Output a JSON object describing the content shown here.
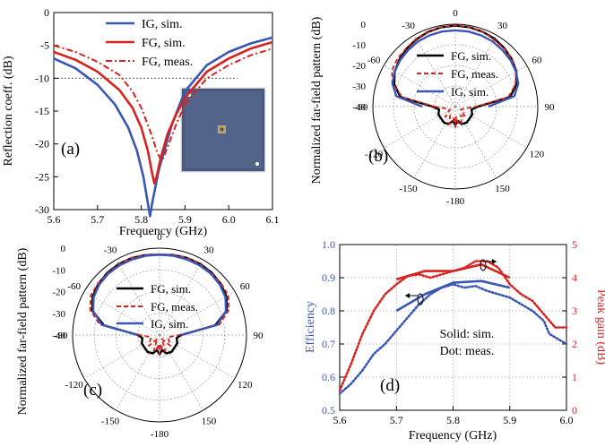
{
  "colors": {
    "ig": "#3a57b5",
    "fg": "#d7231f",
    "black": "#000000",
    "gain_axis": "#d7231f",
    "eff_axis": "#3a57b5",
    "grid": "#9a9a9a",
    "photo": "#4a5a7c"
  },
  "chart_data": [
    {
      "id": "a",
      "type": "line",
      "panel_label": "(a)",
      "xlabel": "Frequency (GHz)",
      "ylabel": "Reflection coeff. (dB)",
      "xlim": [
        5.6,
        6.1
      ],
      "ylim": [
        -30,
        0
      ],
      "xticks": [
        5.6,
        5.7,
        5.8,
        5.9,
        6.0,
        6.1
      ],
      "xtick_labels": [
        "5.6",
        "5.7",
        "5.8",
        "5.9",
        "6.0",
        "6.1"
      ],
      "yticks": [
        0,
        -5,
        -10,
        -15,
        -20,
        -25,
        -30
      ],
      "ytick_labels": [
        "0",
        "-5",
        "-10",
        "-15",
        "-20",
        "-25",
        "-30"
      ],
      "reference_line": -10,
      "legend": [
        "IG, sim.",
        "FG, sim.",
        "FG, meas."
      ],
      "series": [
        {
          "name": "IG, sim.",
          "style": "solid",
          "color": "ig",
          "x": [
            5.6,
            5.65,
            5.7,
            5.74,
            5.77,
            5.79,
            5.805,
            5.815,
            5.82,
            5.825,
            5.84,
            5.87,
            5.9,
            5.95,
            6.0,
            6.05,
            6.1
          ],
          "y": [
            -7,
            -8.5,
            -11,
            -14,
            -17.5,
            -21,
            -25,
            -29,
            -31,
            -29,
            -24,
            -17,
            -12,
            -8,
            -6,
            -4.7,
            -3.8
          ]
        },
        {
          "name": "FG, sim.",
          "style": "solid",
          "color": "fg",
          "x": [
            5.6,
            5.65,
            5.7,
            5.75,
            5.78,
            5.8,
            5.815,
            5.825,
            5.83,
            5.835,
            5.845,
            5.86,
            5.88,
            5.9,
            5.95,
            6.0,
            6.05,
            6.1
          ],
          "y": [
            -6,
            -7.2,
            -9,
            -11.8,
            -14.5,
            -17.5,
            -21,
            -24.5,
            -26,
            -25,
            -22,
            -18.5,
            -15.5,
            -13,
            -9,
            -7,
            -5.5,
            -4.5
          ]
        },
        {
          "name": "FG, meas.",
          "style": "dashdot",
          "color": "fg",
          "x": [
            5.6,
            5.65,
            5.7,
            5.75,
            5.78,
            5.8,
            5.82,
            5.835,
            5.845,
            5.85,
            5.86,
            5.88,
            5.9,
            5.95,
            6.0,
            6.05,
            6.1
          ],
          "y": [
            -5,
            -6,
            -7.5,
            -9.5,
            -12,
            -14.5,
            -18,
            -21,
            -22.5,
            -22.2,
            -20.5,
            -17,
            -14,
            -10,
            -8,
            -6.5,
            -5.5
          ]
        }
      ],
      "inset": "photo of fabricated antenna"
    },
    {
      "id": "b",
      "type": "polar",
      "panel_label": "(b)",
      "ylabel": "Normalized far-field pattern (dB)",
      "radial_range": [
        -40,
        0
      ],
      "radial_ticks": [
        0,
        -10,
        -20,
        -30,
        -40
      ],
      "radial_tick_labels": [
        "0",
        "-10",
        "-20",
        "-30",
        "-40"
      ],
      "angle_labels": [
        "0",
        "30",
        "60",
        "90",
        "120",
        "150",
        "-180",
        "-150",
        "-120",
        "-90",
        "-60",
        "-30"
      ],
      "legend": [
        "FG, sim.",
        "FG, meas.",
        "IG, sim."
      ],
      "series": [
        {
          "name": "FG, sim.",
          "style": "solid",
          "color": "black",
          "theta": [
            -90,
            -80,
            -70,
            -60,
            -50,
            -40,
            -30,
            -20,
            -10,
            0,
            10,
            20,
            30,
            40,
            50,
            60,
            70,
            80,
            90,
            100,
            115,
            130,
            145,
            160,
            170,
            180,
            -170,
            -160,
            -145,
            -130,
            -115,
            -100
          ],
          "r": [
            -29,
            -13,
            -8.5,
            -6,
            -4.5,
            -3.3,
            -2.3,
            -1.4,
            -0.9,
            -0.7,
            -0.9,
            -1.3,
            -2,
            -3,
            -4.2,
            -5.8,
            -8.5,
            -13,
            -29,
            -32,
            -31,
            -31,
            -30.5,
            -31,
            -33,
            -31,
            -33,
            -31,
            -30.5,
            -31,
            -31,
            -32
          ]
        },
        {
          "name": "FG, meas.",
          "style": "dashed",
          "color": "fg",
          "theta": [
            -90,
            -80,
            -70,
            -60,
            -50,
            -40,
            -30,
            -20,
            -10,
            0,
            10,
            20,
            30,
            40,
            50,
            60,
            70,
            80,
            90,
            105,
            120,
            135,
            150,
            160,
            170,
            175,
            180,
            -175,
            -170,
            -160,
            -150,
            -135,
            -120,
            -105
          ],
          "r": [
            -30,
            -14,
            -7.5,
            -4.5,
            -3.5,
            -3,
            -2,
            -1.2,
            -0.8,
            -0.5,
            -0.8,
            -1.2,
            -2.5,
            -3.2,
            -4,
            -6,
            -9,
            -14,
            -30,
            -36,
            -37,
            -33,
            -35,
            -31,
            -32,
            -35,
            -30,
            -35,
            -32,
            -31,
            -35,
            -33,
            -37,
            -36
          ]
        },
        {
          "name": "IG, sim.",
          "style": "solid",
          "color": "ig",
          "theta": [
            -90,
            -80,
            -70,
            -60,
            -50,
            -40,
            -30,
            -20,
            -10,
            0,
            10,
            20,
            30,
            40,
            50,
            60,
            70,
            80,
            90
          ],
          "r": [
            -24,
            -11,
            -7.5,
            -6,
            -5,
            -4.3,
            -3.6,
            -3.2,
            -3.0,
            -3.0,
            -3.0,
            -3.2,
            -3.6,
            -4.3,
            -5,
            -6,
            -7.5,
            -11,
            -24
          ]
        }
      ]
    },
    {
      "id": "c",
      "type": "polar",
      "panel_label": "(c)",
      "ylabel": "Normalized far-field pattern (dB)",
      "radial_range": [
        -40,
        0
      ],
      "radial_ticks": [
        0,
        -10,
        -20,
        -30,
        -40
      ],
      "radial_tick_labels": [
        "0",
        "-10",
        "-20",
        "-30",
        "-40"
      ],
      "angle_labels": [
        "0",
        "30",
        "60",
        "90",
        "120",
        "150",
        "-180",
        "-150",
        "-120",
        "-90",
        "-60",
        "-30"
      ],
      "legend": [
        "FG, sim.",
        "FG, meas.",
        "IG, sim."
      ],
      "series": [
        {
          "name": "FG, sim.",
          "style": "solid",
          "color": "black",
          "theta": [
            -90,
            -80,
            -70,
            -60,
            -50,
            -40,
            -30,
            -20,
            -10,
            0,
            10,
            20,
            30,
            40,
            50,
            60,
            70,
            80,
            90,
            100,
            115,
            130,
            145,
            160,
            170,
            180,
            -170,
            -160,
            -145,
            -130,
            -115,
            -100
          ],
          "r": [
            -30,
            -14,
            -7,
            -4.5,
            -3.3,
            -2.6,
            -2.3,
            -2.3,
            -2.6,
            -3,
            -2.6,
            -2.3,
            -2.3,
            -2.6,
            -3.3,
            -4.5,
            -7,
            -14,
            -30,
            -32,
            -31,
            -31,
            -30.5,
            -31,
            -33,
            -31,
            -33,
            -31,
            -30.5,
            -31,
            -31,
            -32
          ]
        },
        {
          "name": "FG, meas.",
          "style": "dashed",
          "color": "fg",
          "theta": [
            -90,
            -80,
            -70,
            -60,
            -50,
            -40,
            -30,
            -20,
            -10,
            0,
            10,
            20,
            30,
            40,
            50,
            60,
            70,
            80,
            90,
            105,
            120,
            135,
            150,
            160,
            170,
            175,
            180,
            -175,
            -170,
            -160,
            -150,
            -135,
            -120,
            -105
          ],
          "r": [
            -31,
            -12,
            -6,
            -3.5,
            -3,
            -2.8,
            -2.5,
            -2.2,
            -2.5,
            -3,
            -2.5,
            -2.2,
            -2.5,
            -2.8,
            -3,
            -3.5,
            -6,
            -12,
            -31,
            -36,
            -35,
            -33,
            -38,
            -32,
            -34,
            -36,
            -31,
            -36,
            -34,
            -32,
            -38,
            -33,
            -35,
            -36
          ]
        },
        {
          "name": "IG, sim.",
          "style": "solid",
          "color": "ig",
          "theta": [
            -90,
            -80,
            -70,
            -60,
            -50,
            -40,
            -30,
            -20,
            -10,
            0,
            10,
            20,
            30,
            40,
            50,
            60,
            70,
            80,
            90
          ],
          "r": [
            -30,
            -13,
            -7.5,
            -5,
            -3.8,
            -3.2,
            -3,
            -3,
            -3,
            -3,
            -3,
            -3,
            -3,
            -3.2,
            -3.8,
            -5,
            -7.5,
            -13,
            -30
          ]
        }
      ]
    },
    {
      "id": "d",
      "type": "line",
      "panel_label": "(d)",
      "xlabel": "Frequency (GHz)",
      "ylabel": "Efficiency",
      "y2label": "Peak gain (dB)",
      "xlim": [
        5.6,
        6.0
      ],
      "ylim": [
        0.5,
        1.0
      ],
      "y2lim": [
        0,
        5
      ],
      "xticks": [
        5.6,
        5.7,
        5.8,
        5.9,
        6.0
      ],
      "xtick_labels": [
        "5.6",
        "5.7",
        "5.8",
        "5.9",
        "6.0"
      ],
      "yticks": [
        0.5,
        0.6,
        0.7,
        0.8,
        0.9,
        1.0
      ],
      "ytick_labels": [
        "0.5",
        "0.6",
        "0.7",
        "0.8",
        "0.9",
        "1.0"
      ],
      "y2ticks": [
        0,
        1,
        2,
        3,
        4,
        5
      ],
      "y2tick_labels": [
        "0",
        "1",
        "2",
        "3",
        "4",
        "5"
      ],
      "annotation_lines": [
        "Solid: sim.",
        "Dot: meas."
      ],
      "series": [
        {
          "name": "Efficiency, sim.",
          "axis": "left",
          "style": "solid",
          "color": "ig",
          "x": [
            5.7,
            5.75,
            5.8,
            5.85,
            5.9
          ],
          "y": [
            0.8,
            0.85,
            0.885,
            0.89,
            0.87
          ]
        },
        {
          "name": "Efficiency, meas.",
          "axis": "left",
          "style": "dotted",
          "color": "ig",
          "x": [
            5.6,
            5.62,
            5.64,
            5.66,
            5.68,
            5.7,
            5.72,
            5.74,
            5.76,
            5.78,
            5.8,
            5.82,
            5.84,
            5.86,
            5.88,
            5.9,
            5.92,
            5.94,
            5.96,
            5.97,
            5.98,
            6.0
          ],
          "y": [
            0.55,
            0.58,
            0.62,
            0.67,
            0.7,
            0.74,
            0.78,
            0.82,
            0.85,
            0.87,
            0.88,
            0.87,
            0.875,
            0.86,
            0.85,
            0.84,
            0.82,
            0.8,
            0.77,
            0.73,
            0.72,
            0.7
          ]
        },
        {
          "name": "Peak gain, sim.",
          "axis": "right",
          "style": "solid",
          "color": "fg",
          "x": [
            5.7,
            5.75,
            5.8,
            5.85,
            5.9
          ],
          "y": [
            3.95,
            4.2,
            4.2,
            4.4,
            4.0
          ]
        },
        {
          "name": "Peak gain, meas.",
          "axis": "right",
          "style": "dotted",
          "color": "fg",
          "x": [
            5.6,
            5.62,
            5.64,
            5.66,
            5.68,
            5.7,
            5.72,
            5.74,
            5.76,
            5.78,
            5.8,
            5.82,
            5.84,
            5.86,
            5.88,
            5.9,
            5.92,
            5.94,
            5.96,
            5.98,
            6.0
          ],
          "y": [
            0.6,
            1.4,
            2.3,
            3.0,
            3.5,
            3.8,
            4.05,
            4.1,
            4.0,
            4.1,
            4.2,
            4.3,
            4.5,
            4.5,
            4.3,
            3.8,
            3.5,
            3.3,
            2.9,
            2.5,
            2.5
          ]
        }
      ]
    }
  ]
}
